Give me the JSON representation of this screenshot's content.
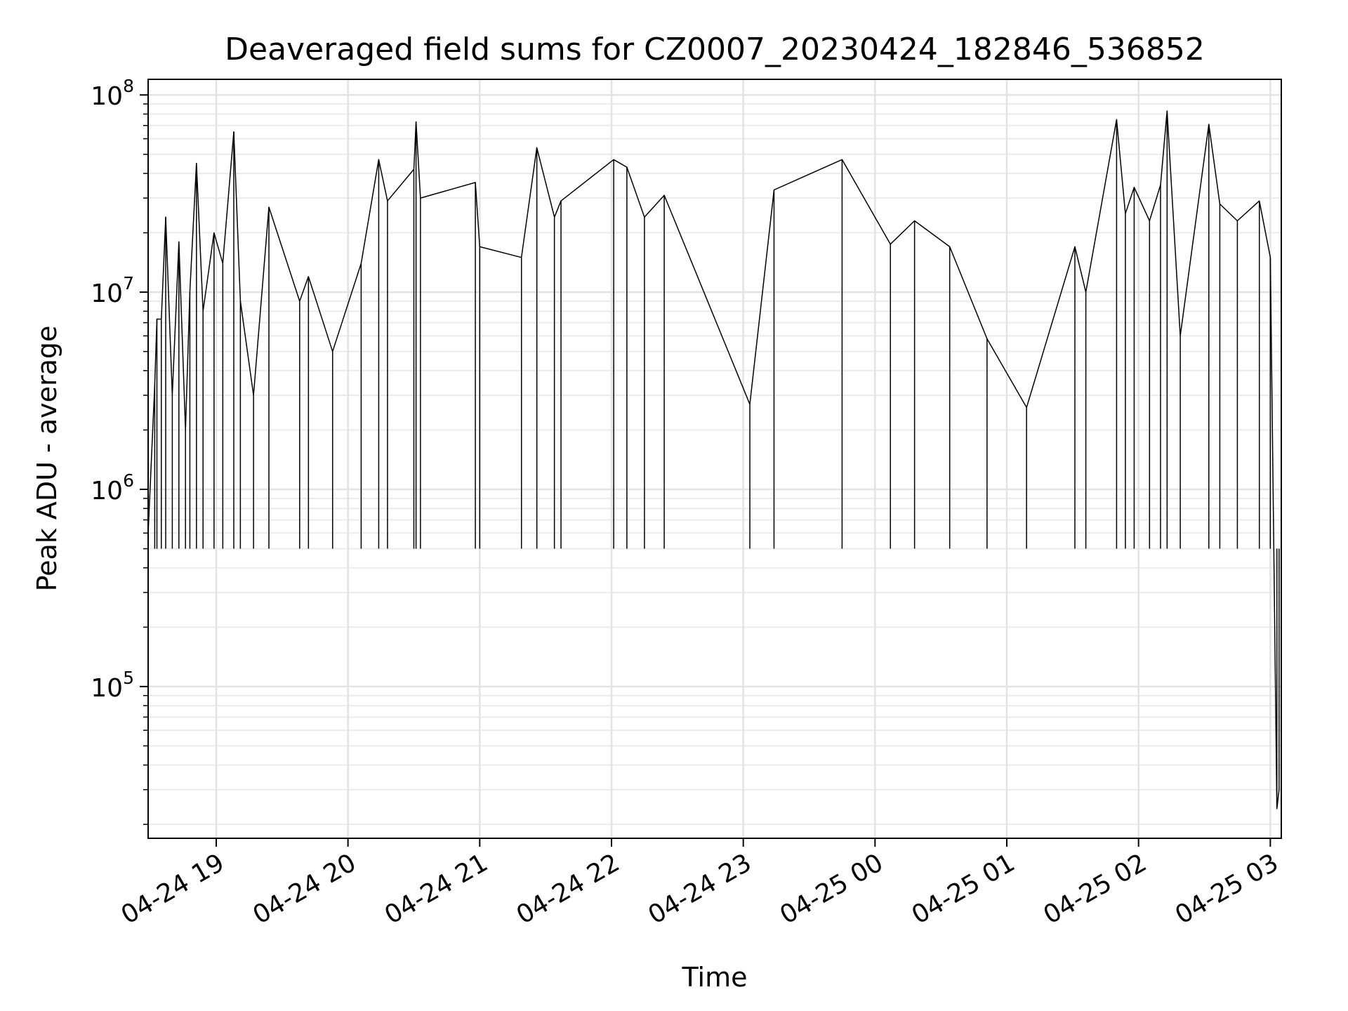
{
  "chart_data": {
    "type": "line",
    "title": "Deaveraged field sums for CZ0007_20230424_182846_536852",
    "xlabel": "Time",
    "ylabel": "Peak ADU - average",
    "yscale": "log",
    "ylim": [
      17000,
      120000000
    ],
    "xlim": [
      "2023-04-24 18:29",
      "2023-04-25 03:05"
    ],
    "grid": true,
    "x_ticks": [
      {
        "t": "2023-04-24 19:00",
        "label": "04-24 19"
      },
      {
        "t": "2023-04-24 20:00",
        "label": "04-24 20"
      },
      {
        "t": "2023-04-24 21:00",
        "label": "04-24 21"
      },
      {
        "t": "2023-04-24 22:00",
        "label": "04-24 22"
      },
      {
        "t": "2023-04-24 23:00",
        "label": "04-24 23"
      },
      {
        "t": "2023-04-25 00:00",
        "label": "04-25 00"
      },
      {
        "t": "2023-04-25 01:00",
        "label": "04-25 01"
      },
      {
        "t": "2023-04-25 02:00",
        "label": "04-25 02"
      },
      {
        "t": "2023-04-25 03:00",
        "label": "04-25 03"
      }
    ],
    "y_ticks": [
      {
        "value": 100000,
        "base": "10",
        "exp": "5"
      },
      {
        "value": 1000000,
        "base": "10",
        "exp": "6"
      },
      {
        "value": 10000000,
        "base": "10",
        "exp": "7"
      },
      {
        "value": 100000000,
        "base": "10",
        "exp": "8"
      }
    ],
    "series": [
      {
        "color": "#000000",
        "points": [
          [
            "2023-04-24 18:29",
            600000
          ],
          [
            "2023-04-24 18:32",
            3400000
          ],
          [
            "2023-04-24 18:33",
            7300000
          ],
          [
            "2023-04-24 18:35",
            7300000
          ],
          [
            "2023-04-24 18:37",
            24000000
          ],
          [
            "2023-04-24 18:40",
            3000000
          ],
          [
            "2023-04-24 18:43",
            18000000
          ],
          [
            "2023-04-24 18:46",
            2000000
          ],
          [
            "2023-04-24 18:48",
            10000000
          ],
          [
            "2023-04-24 18:51",
            45000000
          ],
          [
            "2023-04-24 18:54",
            8000000
          ],
          [
            "2023-04-24 18:59",
            20000000
          ],
          [
            "2023-04-24 19:03",
            14000000
          ],
          [
            "2023-04-24 19:08",
            65000000
          ],
          [
            "2023-04-24 19:11",
            9000000
          ],
          [
            "2023-04-24 19:17",
            3000000
          ],
          [
            "2023-04-24 19:24",
            27000000
          ],
          [
            "2023-04-24 19:38",
            9000000
          ],
          [
            "2023-04-24 19:42",
            12000000
          ],
          [
            "2023-04-24 19:53",
            5000000
          ],
          [
            "2023-04-24 20:06",
            14000000
          ],
          [
            "2023-04-24 20:14",
            47000000
          ],
          [
            "2023-04-24 20:18",
            29000000
          ],
          [
            "2023-04-24 20:30",
            42000000
          ],
          [
            "2023-04-24 20:31",
            73000000
          ],
          [
            "2023-04-24 20:33",
            30000000
          ],
          [
            "2023-04-24 20:58",
            36000000
          ],
          [
            "2023-04-24 21:00",
            17000000
          ],
          [
            "2023-04-24 21:19",
            15000000
          ],
          [
            "2023-04-24 21:26",
            54000000
          ],
          [
            "2023-04-24 21:34",
            24000000
          ],
          [
            "2023-04-24 21:37",
            29000000
          ],
          [
            "2023-04-24 22:01",
            47000000
          ],
          [
            "2023-04-24 22:07",
            43000000
          ],
          [
            "2023-04-24 22:15",
            24000000
          ],
          [
            "2023-04-24 22:24",
            31000000
          ],
          [
            "2023-04-24 23:03",
            2700000
          ],
          [
            "2023-04-24 23:14",
            33000000
          ],
          [
            "2023-04-24 23:45",
            47000000
          ],
          [
            "2023-04-25 00:07",
            17500000
          ],
          [
            "2023-04-25 00:18",
            23000000
          ],
          [
            "2023-04-25 00:34",
            17000000
          ],
          [
            "2023-04-25 00:51",
            5800000
          ],
          [
            "2023-04-25 01:09",
            2600000
          ],
          [
            "2023-04-25 01:31",
            17000000
          ],
          [
            "2023-04-25 01:36",
            10000000
          ],
          [
            "2023-04-25 01:50",
            75000000
          ],
          [
            "2023-04-25 01:54",
            25000000
          ],
          [
            "2023-04-25 01:58",
            34000000
          ],
          [
            "2023-04-25 02:05",
            23000000
          ],
          [
            "2023-04-25 02:10",
            35000000
          ],
          [
            "2023-04-25 02:13",
            83000000
          ],
          [
            "2023-04-25 02:19",
            6000000
          ],
          [
            "2023-04-25 02:32",
            71000000
          ],
          [
            "2023-04-25 02:37",
            28000000
          ],
          [
            "2023-04-25 02:45",
            23000000
          ],
          [
            "2023-04-25 02:55",
            29000000
          ],
          [
            "2023-04-25 03:00",
            15000000
          ],
          [
            "2023-04-25 03:03",
            24000
          ],
          [
            "2023-04-25 03:04",
            30000
          ]
        ]
      }
    ]
  }
}
